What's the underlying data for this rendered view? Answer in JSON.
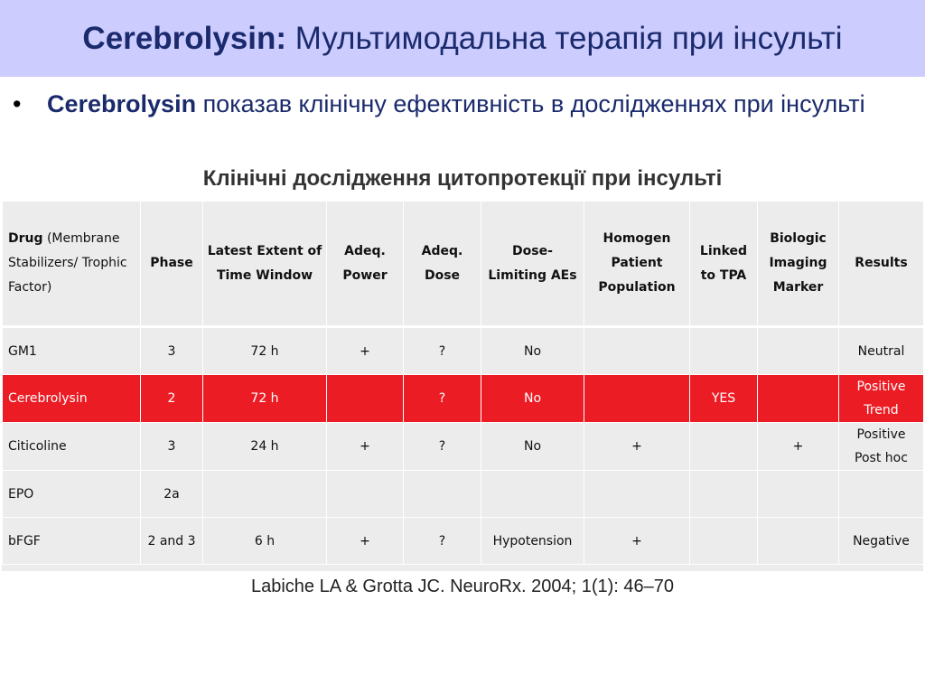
{
  "title": {
    "bold": "Cerebrolysin:",
    "rest": " Мультимодальна терапія при інсульті"
  },
  "bullet": {
    "symbol": "•",
    "bold": "Cerebrolysin",
    "rest": " показав клінічну ефективність в дослідженнях при інсульті"
  },
  "subtitle": "Клінічні дослідження цитопротекції при інсульті",
  "table": {
    "header": {
      "drug_bold": "Drug",
      "drug_rest": " (Membrane Stabilizers/ Trophic Factor)",
      "phase": "Phase",
      "window": "Latest Extent of Time Window",
      "power": "Adeq. Power",
      "dose": "Adeq. Dose",
      "aes": "Dose-Limiting AEs",
      "homogen": "Homogen Patient Population",
      "tpa": "Linked to TPA",
      "marker": "Biologic Imaging Marker",
      "results": "Results"
    },
    "rows": [
      {
        "drug": "GM1",
        "phase": "3",
        "window": "72 h",
        "power": "+",
        "dose": "?",
        "aes": "No",
        "homogen": "",
        "tpa": "",
        "marker": "",
        "results": "Neutral"
      },
      {
        "drug": "Cerebrolysin",
        "phase": "2",
        "window": "72 h",
        "power": "",
        "dose": "?",
        "aes": "No",
        "homogen": "",
        "tpa": "YES",
        "marker": "",
        "results": "Positive Trend"
      },
      {
        "drug": "Citicoline",
        "phase": "3",
        "window": "24 h",
        "power": "+",
        "dose": "?",
        "aes": "No",
        "homogen": "+",
        "tpa": "",
        "marker": "+",
        "results": "Positive Post hoc"
      },
      {
        "drug": "EPO",
        "phase": "2a",
        "window": "",
        "power": "",
        "dose": "",
        "aes": "",
        "homogen": "",
        "tpa": "",
        "marker": "",
        "results": ""
      },
      {
        "drug": "bFGF",
        "phase": "2 and 3",
        "window": "6 h",
        "power": "+",
        "dose": "?",
        "aes": "Hypotension",
        "homogen": "+",
        "tpa": "",
        "marker": "",
        "results": "Negative"
      }
    ]
  },
  "citation": "Labiche LA & Grotta JC. NeuroRx. 2004; 1(1): 46–70",
  "colors": {
    "title_bg": "#ccccff",
    "title_text": "#1a2a6c",
    "highlight": "#ec1c24",
    "table_bg": "#ececec"
  }
}
